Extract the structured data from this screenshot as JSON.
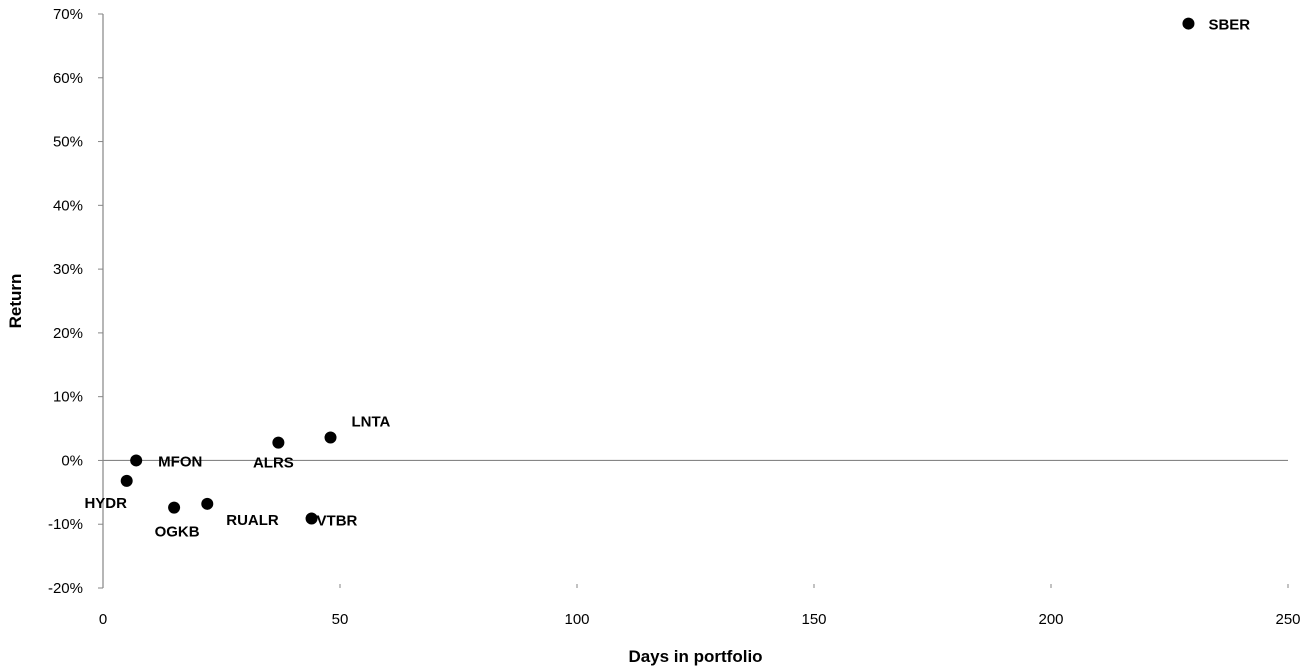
{
  "chart_data": {
    "type": "scatter",
    "title": "",
    "xlabel": "Days in portfolio",
    "ylabel": "Return",
    "xlim": [
      0,
      250
    ],
    "ylim": [
      -0.2,
      0.7
    ],
    "x_ticks": [
      0,
      50,
      100,
      150,
      200,
      250
    ],
    "x_tick_labels": [
      "0",
      "50",
      "100",
      "150",
      "200",
      "250"
    ],
    "y_ticks": [
      -0.2,
      -0.1,
      0,
      0.1,
      0.2,
      0.3,
      0.4,
      0.5,
      0.6,
      0.7
    ],
    "y_tick_labels": [
      "-20%",
      "-10%",
      "0%",
      "10%",
      "20%",
      "30%",
      "40%",
      "50%",
      "60%",
      "70%"
    ],
    "grid": false,
    "legend": "none",
    "marker_color": "#000000",
    "points": [
      {
        "label": "SBER",
        "x": 229,
        "y": 0.685,
        "label_side": "right"
      },
      {
        "label": "LNTA",
        "x": 48,
        "y": 0.036,
        "label_side": "upper-right"
      },
      {
        "label": "ALRS",
        "x": 37,
        "y": 0.028,
        "label_side": "below"
      },
      {
        "label": "MFON",
        "x": 7,
        "y": 0.0,
        "label_side": "right"
      },
      {
        "label": "HYDR",
        "x": 5,
        "y": -0.032,
        "label_side": "below"
      },
      {
        "label": "OGKB",
        "x": 15,
        "y": -0.074,
        "label_side": "below"
      },
      {
        "label": "RUALR",
        "x": 22,
        "y": -0.068,
        "label_side": "below-right"
      },
      {
        "label": "VTBR",
        "x": 44,
        "y": -0.091,
        "label_side": "right"
      }
    ]
  }
}
